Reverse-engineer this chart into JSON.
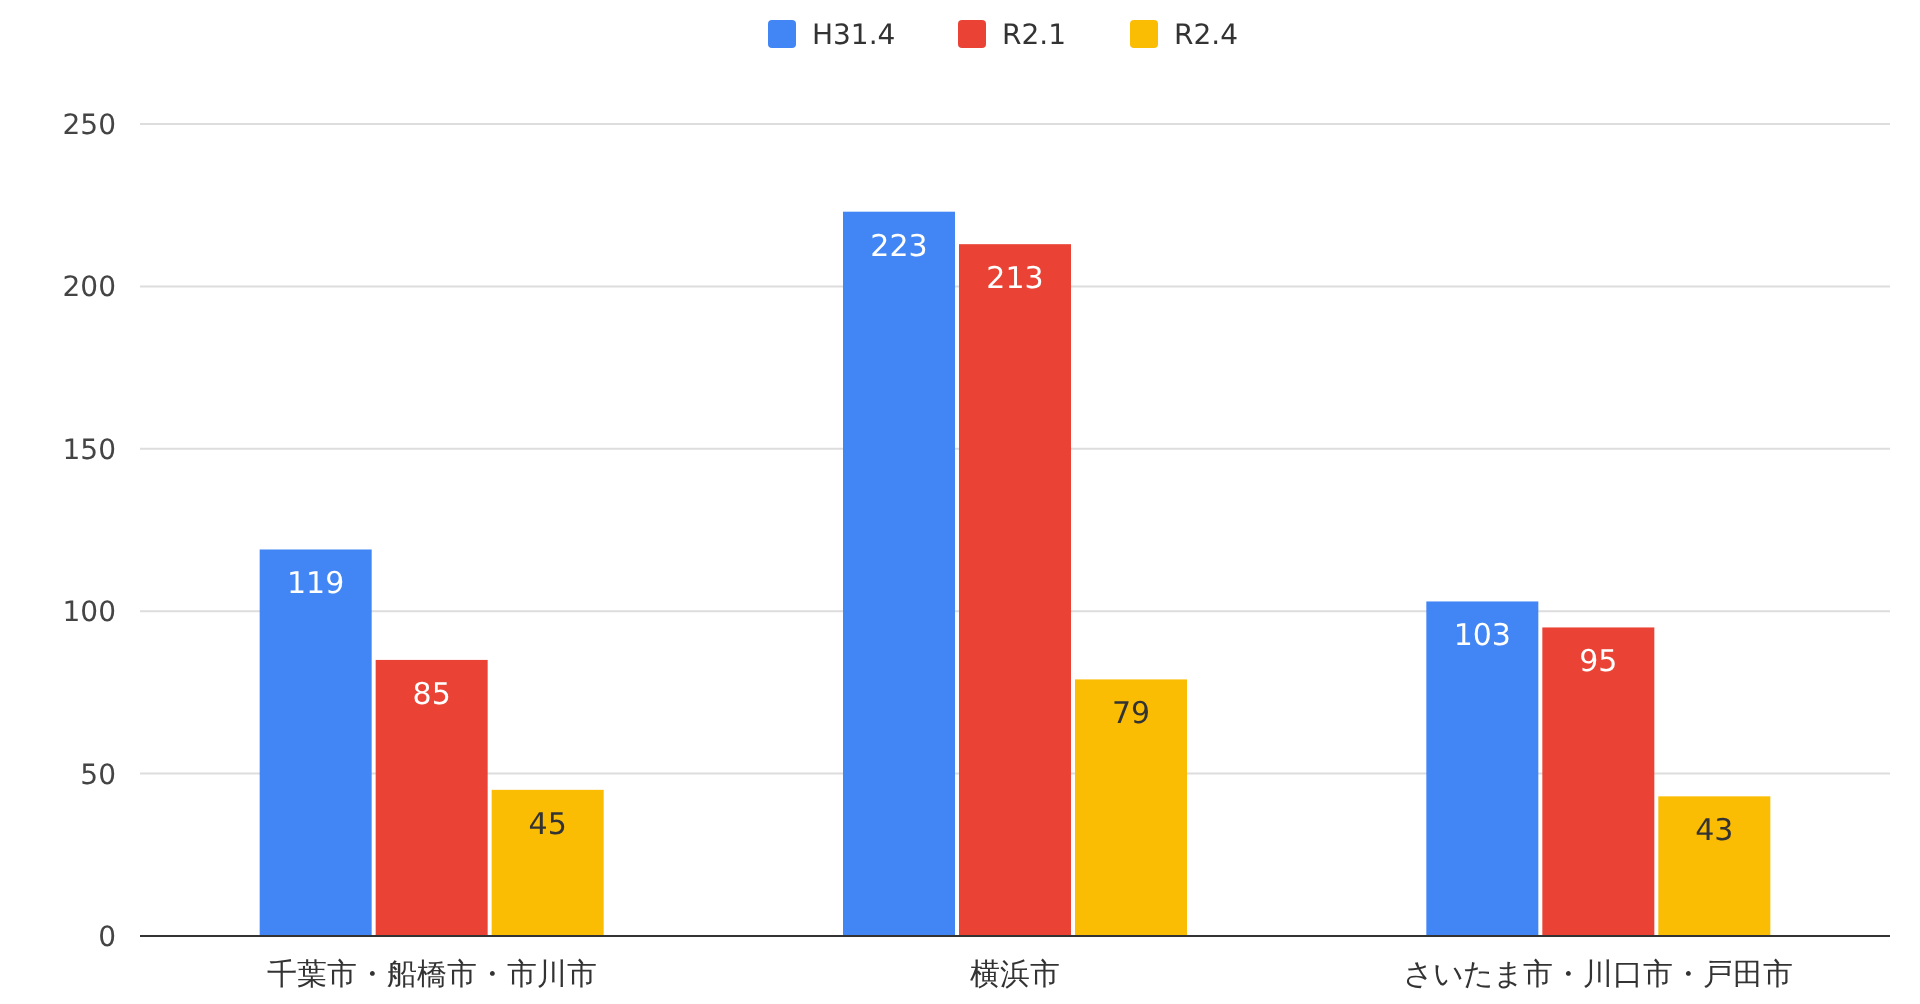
{
  "chart_data": {
    "type": "bar",
    "categories": [
      "千葉市・船橋市・市川市",
      "横浜市",
      "さいたま市・川口市・戸田市"
    ],
    "series": [
      {
        "name": "H31.4",
        "color": "#4285f4",
        "values": [
          119,
          223,
          103
        ]
      },
      {
        "name": "R2.1",
        "color": "#ea4335",
        "values": [
          85,
          213,
          95
        ]
      },
      {
        "name": "R2.4",
        "color": "#fbbc04",
        "values": [
          45,
          79,
          43
        ]
      }
    ],
    "ylim": [
      0,
      250
    ],
    "yticks": [
      0,
      50,
      100,
      150,
      200,
      250
    ],
    "grid": "y",
    "legend": "top",
    "data_labels": true
  }
}
